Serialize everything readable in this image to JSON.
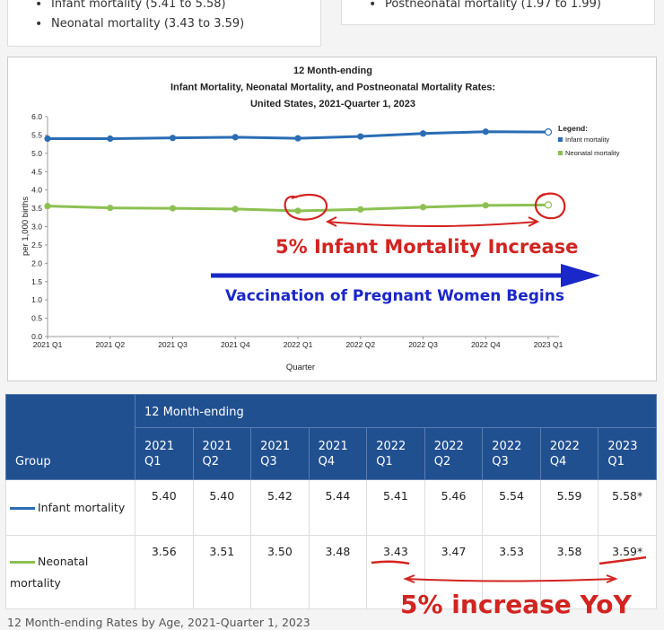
{
  "top_cards": {
    "left_items": [
      "Infant mortality (5.41 to 5.58)",
      "Neonatal mortality (3.43 to 3.59)"
    ],
    "right_items": [
      "Postneonatal mortality (1.97 to 1.99)"
    ]
  },
  "chart_data": {
    "type": "line",
    "title_lines": [
      "12 Month-ending",
      "Infant Mortality, Neonatal Mortality, and Postneonatal Mortality Rates:",
      "United States, 2021-Quarter 1, 2023"
    ],
    "xlabel": "Quarter",
    "ylabel": "per 1,000 births",
    "ylim": [
      0,
      6
    ],
    "yticks": [
      "0.0",
      "0.5",
      "1.0",
      "1.5",
      "2.0",
      "2.5",
      "3.0",
      "3.5",
      "4.0",
      "4.5",
      "5.0",
      "5.5",
      "6.0"
    ],
    "categories": [
      "2021 Q1",
      "2021 Q2",
      "2021 Q3",
      "2021 Q4",
      "2022 Q1",
      "2022 Q2",
      "2022 Q3",
      "2022 Q4",
      "2023 Q1"
    ],
    "series": [
      {
        "name": "Infant mortality",
        "color": "#2a6db5",
        "values": [
          5.4,
          5.4,
          5.42,
          5.44,
          5.41,
          5.46,
          5.54,
          5.59,
          5.58
        ]
      },
      {
        "name": "Neonatal mortality",
        "color": "#8cc152",
        "values": [
          3.56,
          3.51,
          3.5,
          3.48,
          3.43,
          3.47,
          3.53,
          3.58,
          3.59
        ]
      }
    ],
    "legend_title": "Legend:",
    "legend_position": "top-right",
    "grid": false
  },
  "annotations": {
    "red_text": "5% Infant Mortality Increase",
    "blue_text": "Vaccination of Pregnant Women Begins",
    "table_text": "5% increase YoY"
  },
  "table": {
    "group_header": "Group",
    "span_header": "12 Month-ending",
    "quarters": [
      [
        "2021",
        "Q1"
      ],
      [
        "2021",
        "Q2"
      ],
      [
        "2021",
        "Q3"
      ],
      [
        "2021",
        "Q4"
      ],
      [
        "2022",
        "Q1"
      ],
      [
        "2022",
        "Q2"
      ],
      [
        "2022",
        "Q3"
      ],
      [
        "2022",
        "Q4"
      ],
      [
        "2023",
        "Q1"
      ]
    ],
    "rows": [
      {
        "label": "Infant mortality",
        "color": "#2a6db5",
        "values": [
          "5.40",
          "5.40",
          "5.42",
          "5.44",
          "5.41",
          "5.46",
          "5.54",
          "5.59",
          "5.58*"
        ]
      },
      {
        "label": "Neonatal mortality",
        "color": "#8cc152",
        "values": [
          "3.56",
          "3.51",
          "3.50",
          "3.48",
          "3.43",
          "3.47",
          "3.53",
          "3.58",
          "3.59*"
        ]
      }
    ]
  },
  "caption": "12 Month-ending Rates by Age, 2021-Quarter 1, 2023"
}
